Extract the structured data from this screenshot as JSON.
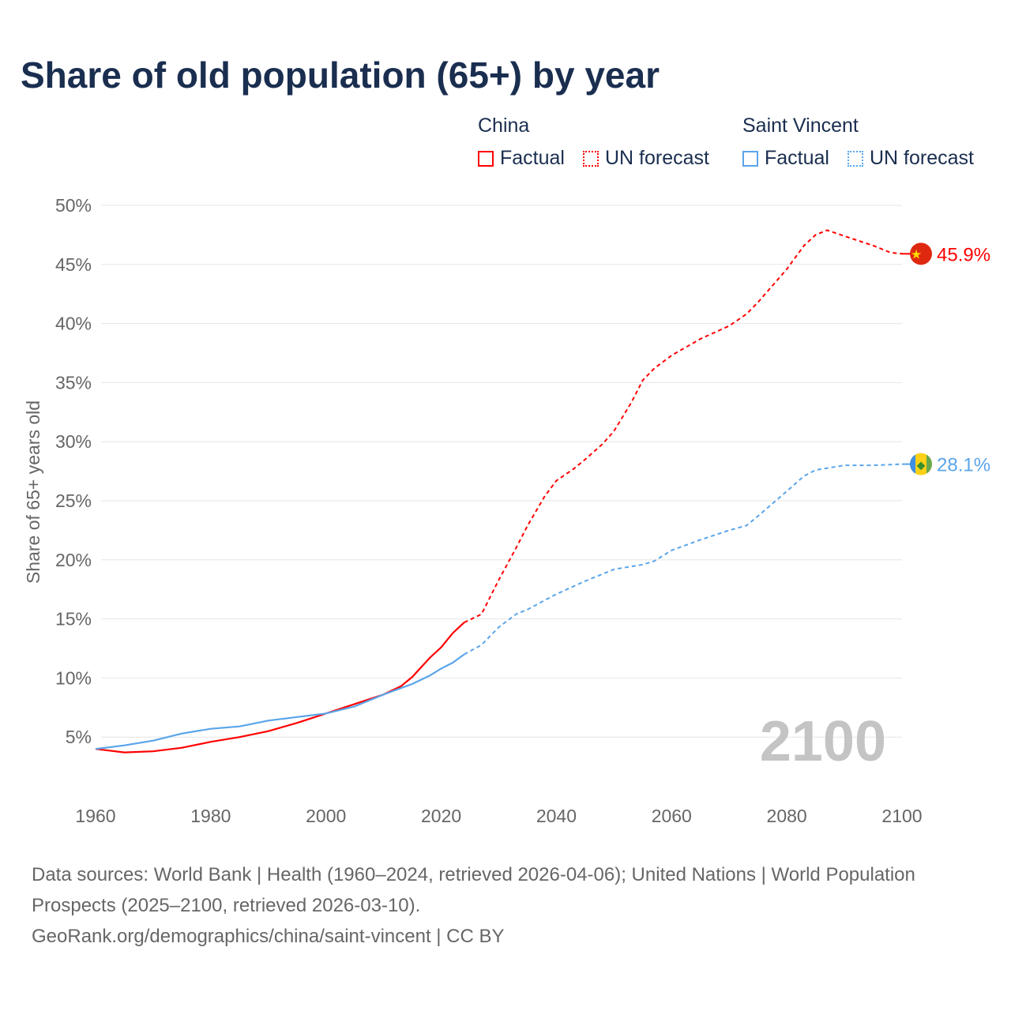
{
  "title": "Share of old population (65+) by year",
  "legend": {
    "china": {
      "name": "China",
      "factual": "Factual",
      "forecast": "UN forecast"
    },
    "svg": {
      "name": "Saint Vincent",
      "factual": "Factual",
      "forecast": "UN forecast"
    }
  },
  "year_watermark": "2100",
  "footer": {
    "line1": "Data sources: World Bank | Health (1960–2024, retrieved 2026-04-06); United Nations | World Population Prospects (2025–2100, retrieved 2026-03-10).",
    "line2": "GeoRank.org/demographics/china/saint-vincent | CC BY"
  },
  "colors": {
    "china": "#ff0000",
    "svg": "#5aa5ea",
    "grid": "#e6e6e6"
  },
  "chart_data": {
    "type": "line",
    "ylabel": "Share of 65+ years old",
    "xlabel": "",
    "xlim": [
      1960,
      2100
    ],
    "ylim": [
      0,
      50
    ],
    "x_ticks": [
      "1960",
      "1980",
      "2000",
      "2020",
      "2040",
      "2060",
      "2080",
      "2100"
    ],
    "y_ticks": [
      "5%",
      "10%",
      "15%",
      "20%",
      "25%",
      "30%",
      "35%",
      "40%",
      "45%",
      "50%"
    ],
    "series": [
      {
        "name": "China",
        "end_label": "45.9%",
        "factual": {
          "x": [
            1960,
            1965,
            1970,
            1975,
            1980,
            1985,
            1990,
            1995,
            2000,
            2005,
            2010,
            2013,
            2015,
            2018,
            2020,
            2022,
            2024
          ],
          "y": [
            4.0,
            3.7,
            3.8,
            4.1,
            4.6,
            5.0,
            5.5,
            6.2,
            7.0,
            7.8,
            8.6,
            9.3,
            10.1,
            11.7,
            12.6,
            13.8,
            14.7
          ]
        },
        "forecast": {
          "x": [
            2024,
            2027,
            2030,
            2033,
            2035,
            2038,
            2040,
            2043,
            2045,
            2048,
            2050,
            2053,
            2055,
            2057,
            2060,
            2065,
            2070,
            2073,
            2075,
            2080,
            2083,
            2085,
            2087,
            2090,
            2095,
            2098,
            2100
          ],
          "y": [
            14.7,
            15.4,
            18.3,
            21.0,
            22.9,
            25.4,
            26.7,
            27.7,
            28.5,
            29.8,
            30.9,
            33.3,
            35.2,
            36.2,
            37.3,
            38.7,
            39.8,
            40.8,
            41.8,
            44.6,
            46.6,
            47.5,
            47.9,
            47.4,
            46.6,
            46.0,
            45.9
          ]
        }
      },
      {
        "name": "Saint Vincent",
        "end_label": "28.1%",
        "factual": {
          "x": [
            1960,
            1965,
            1970,
            1975,
            1980,
            1985,
            1990,
            1995,
            2000,
            2005,
            2010,
            2015,
            2018,
            2020,
            2022,
            2024
          ],
          "y": [
            4.0,
            4.3,
            4.7,
            5.3,
            5.7,
            5.9,
            6.4,
            6.7,
            7.0,
            7.6,
            8.6,
            9.5,
            10.2,
            10.8,
            11.3,
            12.0
          ]
        },
        "forecast": {
          "x": [
            2024,
            2027,
            2030,
            2033,
            2035,
            2040,
            2045,
            2050,
            2055,
            2057,
            2060,
            2065,
            2070,
            2073,
            2075,
            2080,
            2083,
            2085,
            2090,
            2095,
            2100
          ],
          "y": [
            12.0,
            12.8,
            14.3,
            15.4,
            15.8,
            17.1,
            18.2,
            19.2,
            19.6,
            19.9,
            20.8,
            21.7,
            22.5,
            22.9,
            23.7,
            25.8,
            27.1,
            27.6,
            28.0,
            28.0,
            28.1
          ]
        }
      }
    ]
  }
}
